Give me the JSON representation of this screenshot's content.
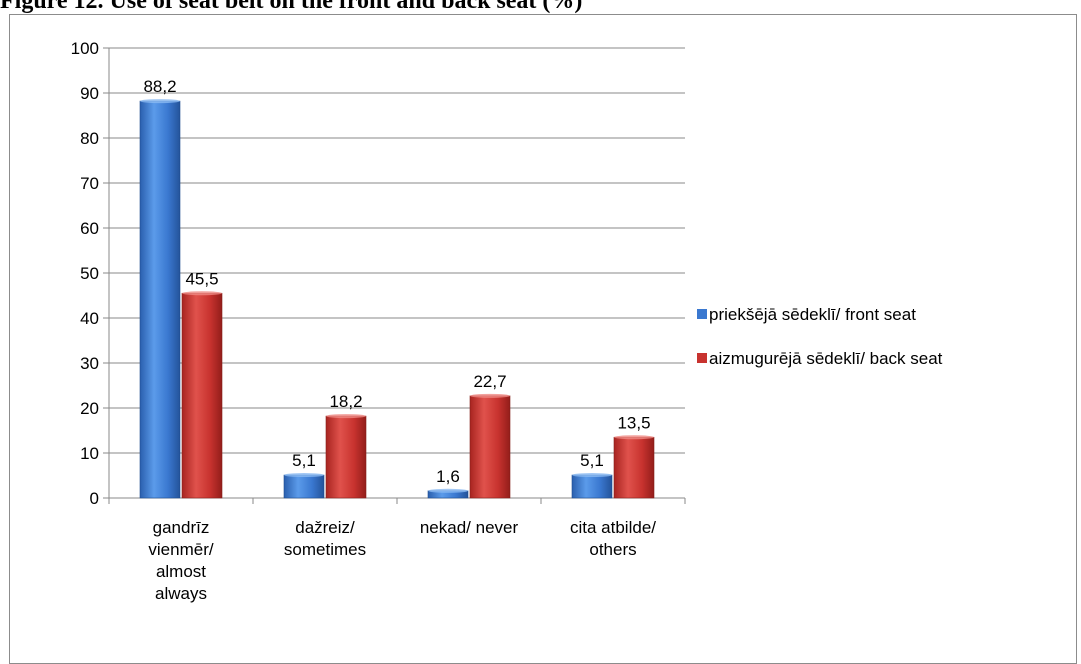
{
  "figure_title": "Figure 12. Use of seat belt on the front and back seat (%)",
  "colors": {
    "front": "#3a78d0",
    "back": "#c8332f",
    "grid": "#8a8a8a",
    "text": "#000000"
  },
  "chart_data": {
    "type": "bar",
    "title": "",
    "xlabel": "",
    "ylabel": "",
    "ylim": [
      0,
      100
    ],
    "yticks": [
      0,
      10,
      20,
      30,
      40,
      50,
      60,
      70,
      80,
      90,
      100
    ],
    "grid": true,
    "legend_position": "right",
    "categories": [
      [
        "gandrīz",
        "vienmēr/",
        "almost",
        "always"
      ],
      [
        "dažreiz/",
        "sometimes"
      ],
      [
        "nekad/ never"
      ],
      [
        "cita atbilde/",
        "others"
      ]
    ],
    "series": [
      {
        "name": "priekšējā sēdeklī/ front seat",
        "values": [
          88.2,
          5.1,
          1.6,
          5.1
        ],
        "labels": [
          "88,2",
          "5,1",
          "1,6",
          "5,1"
        ]
      },
      {
        "name": "aizmugurējā sēdeklī/ back seat",
        "values": [
          45.5,
          18.2,
          22.7,
          13.5
        ],
        "labels": [
          "45,5",
          "18,2",
          "22,7",
          "13,5"
        ]
      }
    ]
  }
}
